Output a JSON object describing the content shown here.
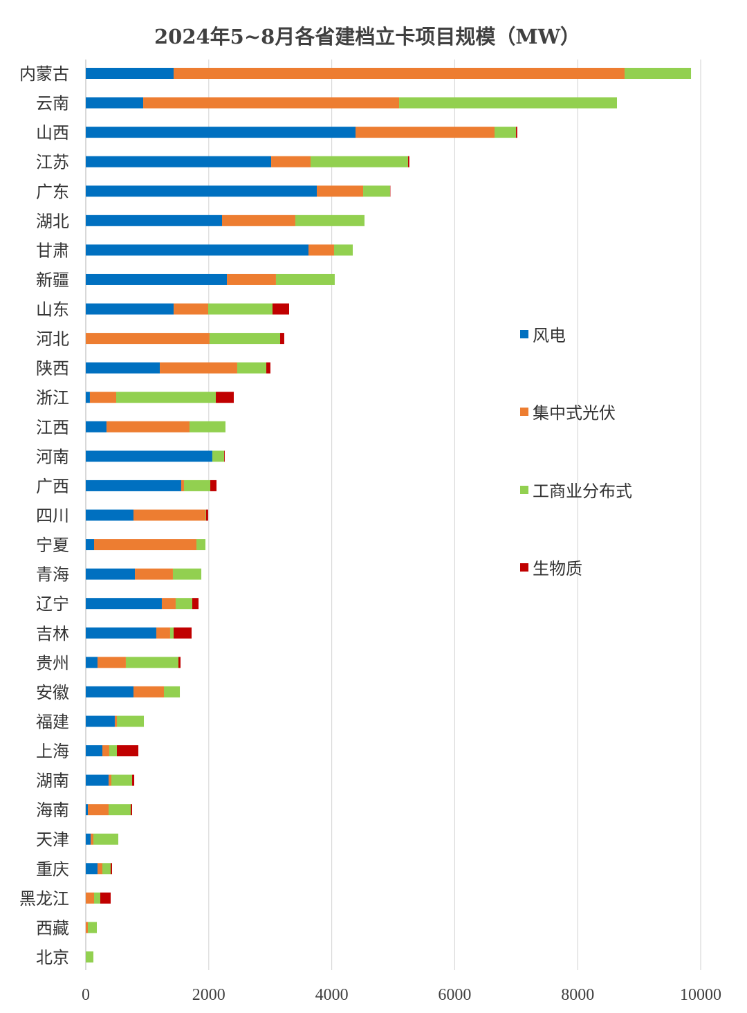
{
  "chart_data": {
    "type": "bar",
    "orientation": "horizontal",
    "stacked": true,
    "title": "2024年5~8月各省建档立卡项目规模（MW）",
    "xlabel": "",
    "ylabel": "",
    "xlim": [
      0,
      10000
    ],
    "xticks": [
      "0",
      "2000",
      "4000",
      "6000",
      "8000",
      "10000"
    ],
    "grid": "vertical",
    "legend_position": "right",
    "categories": [
      "内蒙古",
      "云南",
      "山西",
      "江苏",
      "广东",
      "湖北",
      "甘肃",
      "新疆",
      "山东",
      "河北",
      "陕西",
      "浙江",
      "江西",
      "河南",
      "广西",
      "四川",
      "宁夏",
      "青海",
      "辽宁",
      "吉林",
      "贵州",
      "安徽",
      "福建",
      "上海",
      "湖南",
      "海南",
      "天津",
      "重庆",
      "黑龙江",
      "西藏",
      "北京"
    ],
    "series": [
      {
        "name": "风电",
        "color": "#0070C0",
        "values": [
          1429,
          934,
          4387,
          3015,
          3757,
          2216,
          3622,
          2295,
          1429,
          0,
          1204,
          67,
          337,
          2058,
          1552,
          776,
          135,
          799,
          1237,
          1147,
          191,
          776,
          472,
          270,
          371,
          34,
          79,
          191,
          0,
          0,
          0
        ]
      },
      {
        "name": "集中式光伏",
        "color": "#ED7D31",
        "values": [
          7334,
          4162,
          2261,
          641,
          754,
          1192,
          416,
          798,
          562,
          2013,
          1259,
          428,
          1350,
          0,
          45,
          1170,
          1665,
          618,
          225,
          225,
          461,
          495,
          34,
          112,
          45,
          337,
          45,
          79,
          135,
          34,
          0
        ]
      },
      {
        "name": "工商业分布式",
        "color": "#92D050",
        "values": [
          1080,
          3543,
          349,
          1586,
          438,
          1125,
          304,
          956,
          1046,
          1148,
          473,
          1620,
          585,
          192,
          428,
          10,
          146,
          462,
          270,
          57,
          855,
          259,
          439,
          124,
          338,
          360,
          405,
          135,
          101,
          146,
          124
        ]
      },
      {
        "name": "生物质",
        "color": "#C00000",
        "values": [
          0,
          0,
          20,
          20,
          5,
          0,
          0,
          0,
          270,
          67,
          67,
          292,
          0,
          10,
          101,
          34,
          0,
          0,
          102,
          292,
          34,
          0,
          0,
          349,
          34,
          22,
          0,
          22,
          169,
          0,
          0
        ]
      }
    ]
  }
}
